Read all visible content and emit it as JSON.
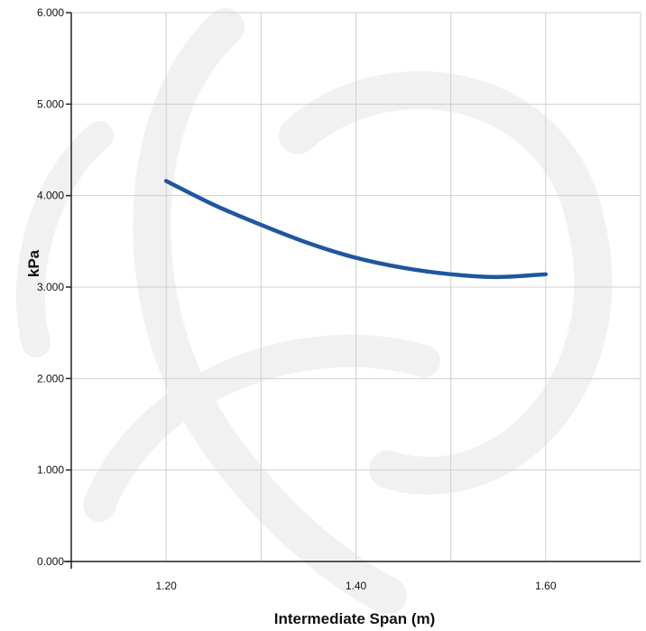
{
  "chart_data": {
    "type": "line",
    "xlabel": "Intermediate Span (m)",
    "ylabel": "kPa",
    "xlim": [
      1.1,
      1.7
    ],
    "ylim": [
      0,
      6
    ],
    "x_ticks": [
      "1.20",
      "1.40",
      "1.60"
    ],
    "x_tick_values": [
      1.2,
      1.4,
      1.6
    ],
    "x_minor_grid": [
      1.3,
      1.5,
      1.7
    ],
    "y_ticks": [
      "0.000",
      "1.000",
      "2.000",
      "3.000",
      "4.000",
      "5.000",
      "6.000"
    ],
    "y_tick_values": [
      0,
      1,
      2,
      3,
      4,
      5,
      6
    ],
    "grid": true,
    "series": [
      {
        "color": "#1f56a0",
        "points": [
          {
            "x": 1.2,
            "y": 4.16
          },
          {
            "x": 1.25,
            "y": 3.9
          },
          {
            "x": 1.3,
            "y": 3.68
          },
          {
            "x": 1.35,
            "y": 3.48
          },
          {
            "x": 1.4,
            "y": 3.32
          },
          {
            "x": 1.45,
            "y": 3.21
          },
          {
            "x": 1.5,
            "y": 3.14
          },
          {
            "x": 1.55,
            "y": 3.11
          },
          {
            "x": 1.6,
            "y": 3.14
          }
        ]
      }
    ],
    "colors": {
      "grid": "#d0d0d0",
      "axis": "#222222",
      "watermark": "#f1f1f1"
    }
  }
}
